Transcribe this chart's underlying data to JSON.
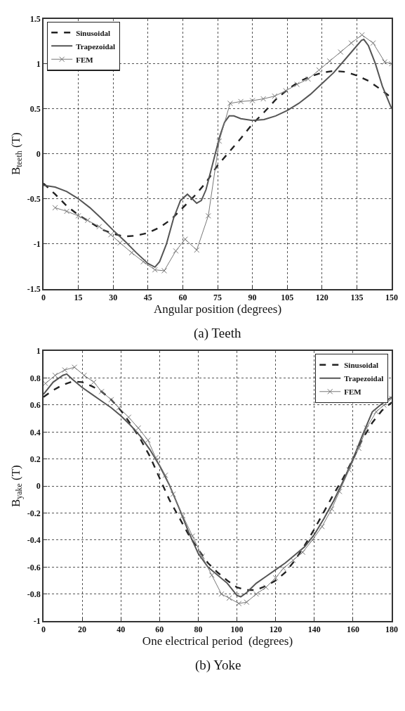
{
  "chart_data": [
    {
      "type": "line",
      "xlabel": "Angular position (degrees)",
      "ylabel": "B$_{teeth}$ (T)",
      "annotations": [
        "(a) Teeth"
      ],
      "xlim": [
        0,
        150
      ],
      "ylim": [
        -1.5,
        1.5
      ],
      "xticks": [
        0,
        15,
        30,
        45,
        60,
        75,
        90,
        105,
        120,
        135,
        150
      ],
      "yticks": [
        -1.5,
        -1,
        -0.5,
        0,
        0.5,
        1,
        1.5
      ],
      "grid": true,
      "legend": "top left",
      "series": [
        {
          "name": "Sinusoidal",
          "color": "#222222",
          "line_style": "dashed",
          "marker": "none",
          "x": [
            0,
            5,
            10,
            15,
            20,
            25,
            30,
            35,
            40,
            45,
            50,
            55,
            60,
            65,
            70,
            75,
            80,
            85,
            90,
            95,
            100,
            105,
            110,
            115,
            120,
            125,
            130,
            135,
            140,
            145,
            150
          ],
          "values": [
            -0.33,
            -0.45,
            -0.58,
            -0.68,
            -0.76,
            -0.84,
            -0.89,
            -0.92,
            -0.91,
            -0.88,
            -0.82,
            -0.73,
            -0.6,
            -0.47,
            -0.32,
            -0.13,
            0.02,
            0.17,
            0.33,
            0.46,
            0.6,
            0.71,
            0.8,
            0.86,
            0.9,
            0.92,
            0.91,
            0.87,
            0.81,
            0.72,
            0.62
          ]
        },
        {
          "name": "Trapezoidal",
          "color": "#555555",
          "line_style": "solid",
          "marker": "none",
          "x": [
            0,
            5,
            10,
            15,
            20,
            25,
            30,
            35,
            40,
            45,
            48,
            50,
            53,
            56,
            59,
            62,
            64,
            66,
            68,
            70,
            72,
            74,
            76,
            78,
            80,
            82,
            85,
            90,
            95,
            100,
            105,
            110,
            115,
            120,
            125,
            130,
            135,
            137,
            138,
            140,
            143,
            146,
            150
          ],
          "values": [
            -0.35,
            -0.37,
            -0.42,
            -0.5,
            -0.6,
            -0.72,
            -0.85,
            -0.97,
            -1.1,
            -1.22,
            -1.26,
            -1.2,
            -1.0,
            -0.72,
            -0.52,
            -0.45,
            -0.5,
            -0.55,
            -0.52,
            -0.4,
            -0.2,
            0.0,
            0.2,
            0.35,
            0.42,
            0.42,
            0.39,
            0.37,
            0.38,
            0.42,
            0.48,
            0.56,
            0.66,
            0.78,
            0.9,
            1.05,
            1.2,
            1.26,
            1.27,
            1.2,
            1.0,
            0.75,
            0.5
          ]
        },
        {
          "name": "FEM",
          "color": "#777777",
          "line_style": "solid",
          "marker": "cross",
          "x": [
            5,
            10,
            15,
            19,
            24,
            29,
            33,
            38,
            43,
            48,
            52,
            57,
            61,
            66,
            71,
            75.7,
            80.4,
            85,
            90,
            94.7,
            99.6,
            104.4,
            109.2,
            114,
            118.7,
            123.3,
            128,
            132.6,
            137.2,
            142,
            147,
            150
          ],
          "values": [
            -0.6,
            -0.64,
            -0.69,
            -0.74,
            -0.81,
            -0.9,
            -0.99,
            -1.1,
            -1.2,
            -1.29,
            -1.3,
            -1.08,
            -0.95,
            -1.07,
            -0.69,
            0.14,
            0.56,
            0.58,
            0.59,
            0.61,
            0.64,
            0.7,
            0.77,
            0.83,
            0.93,
            1.03,
            1.13,
            1.23,
            1.32,
            1.23,
            1.02,
            1.0
          ]
        }
      ]
    },
    {
      "type": "line",
      "xlabel": "One electrical period  (degrees)",
      "ylabel": "B$_{yake}$ (T)",
      "annotations": [
        "(b) Yoke"
      ],
      "xlim": [
        0,
        180
      ],
      "ylim": [
        -1,
        1
      ],
      "xticks": [
        0,
        20,
        40,
        60,
        80,
        100,
        120,
        140,
        160,
        180
      ],
      "yticks": [
        -1,
        -0.8,
        -0.6,
        -0.4,
        -0.2,
        0,
        0.2,
        0.4,
        0.6,
        0.8,
        1
      ],
      "grid": true,
      "legend": "top right",
      "series": [
        {
          "name": "Sinusoidal",
          "color": "#222222",
          "line_style": "dashed",
          "marker": "none",
          "x": [
            0,
            5,
            10,
            15,
            20,
            25,
            30,
            35,
            40,
            45,
            50,
            55,
            60,
            65,
            70,
            75,
            80,
            85,
            90,
            95,
            100,
            105,
            110,
            115,
            120,
            125,
            130,
            135,
            140,
            145,
            150,
            155,
            160,
            165,
            170,
            175,
            180
          ],
          "values": [
            0.66,
            0.71,
            0.75,
            0.775,
            0.77,
            0.74,
            0.7,
            0.64,
            0.56,
            0.46,
            0.35,
            0.22,
            0.06,
            -0.1,
            -0.23,
            -0.36,
            -0.47,
            -0.57,
            -0.64,
            -0.7,
            -0.75,
            -0.77,
            -0.77,
            -0.74,
            -0.7,
            -0.64,
            -0.55,
            -0.44,
            -0.32,
            -0.19,
            -0.06,
            0.06,
            0.2,
            0.35,
            0.47,
            0.56,
            0.62
          ]
        },
        {
          "name": "Trapezoidal",
          "color": "#555555",
          "line_style": "solid",
          "marker": "none",
          "x": [
            0,
            5,
            10,
            12,
            15,
            20,
            25,
            30,
            35,
            40,
            45,
            50,
            55,
            60,
            65,
            70,
            75,
            80,
            85,
            90,
            95,
            100,
            102,
            105,
            110,
            115,
            120,
            125,
            130,
            135,
            140,
            145,
            150,
            155,
            160,
            165,
            170,
            175,
            180
          ],
          "values": [
            0.68,
            0.77,
            0.82,
            0.83,
            0.79,
            0.73,
            0.68,
            0.63,
            0.58,
            0.52,
            0.45,
            0.37,
            0.27,
            0.15,
            0.01,
            -0.16,
            -0.34,
            -0.5,
            -0.6,
            -0.66,
            -0.72,
            -0.81,
            -0.82,
            -0.79,
            -0.72,
            -0.67,
            -0.62,
            -0.57,
            -0.51,
            -0.45,
            -0.36,
            -0.24,
            -0.11,
            0.04,
            0.2,
            0.38,
            0.55,
            0.61,
            0.66
          ]
        },
        {
          "name": "FEM",
          "color": "#777777",
          "line_style": "solid",
          "marker": "cross",
          "x": [
            1,
            6,
            11,
            16,
            21,
            26,
            30,
            35,
            39,
            44,
            49,
            54,
            58,
            63,
            67,
            72,
            77,
            82,
            87,
            92,
            96,
            101,
            105,
            110,
            115,
            120,
            124,
            129,
            134,
            139,
            144,
            149,
            153,
            158,
            163,
            167,
            172,
            176,
            180
          ],
          "values": [
            0.76,
            0.82,
            0.86,
            0.88,
            0.82,
            0.77,
            0.7,
            0.64,
            0.58,
            0.51,
            0.43,
            0.34,
            0.21,
            0.08,
            -0.06,
            -0.22,
            -0.37,
            -0.52,
            -0.66,
            -0.8,
            -0.83,
            -0.87,
            -0.86,
            -0.8,
            -0.75,
            -0.68,
            -0.61,
            -0.55,
            -0.49,
            -0.4,
            -0.3,
            -0.17,
            -0.04,
            0.12,
            0.28,
            0.43,
            0.55,
            0.6,
            0.65
          ]
        }
      ]
    }
  ]
}
